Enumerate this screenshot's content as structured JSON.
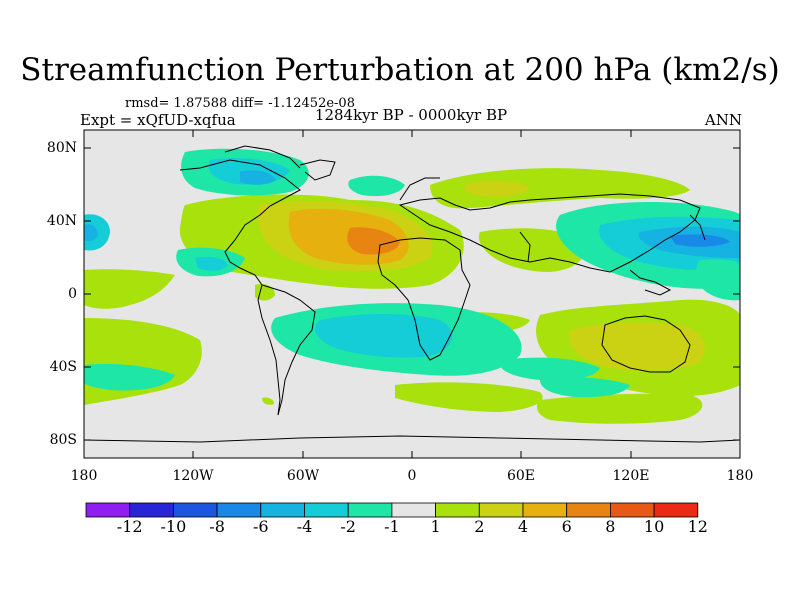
{
  "title": "Streamfunction Perturbation at 200 hPa (km2/s)",
  "stats": "rmsd= 1.87588 diff= -1.12452e-08",
  "experiment": "Expt = xQfUD-xqfua",
  "period": "1284kyr BP - 0000kyr BP",
  "season": "ANN",
  "lat_labels": [
    "80N",
    "40N",
    "0",
    "40S",
    "80S"
  ],
  "lon_labels": [
    "180",
    "120W",
    "60W",
    "0",
    "60E",
    "120E",
    "180"
  ],
  "colorbar": {
    "labels": [
      "-12",
      "-10",
      "-8",
      "-6",
      "-4",
      "-2",
      "-1",
      "1",
      "2",
      "4",
      "6",
      "8",
      "10",
      "12"
    ],
    "colors": [
      "#8f1ff0",
      "#2a24d8",
      "#1b55e0",
      "#1889e6",
      "#15b2e2",
      "#15cdd6",
      "#1ee6a6",
      "#e6e6e6",
      "#a8e10c",
      "#cbd213",
      "#e6b00e",
      "#e88512",
      "#e85a13",
      "#ea2a14"
    ]
  }
}
